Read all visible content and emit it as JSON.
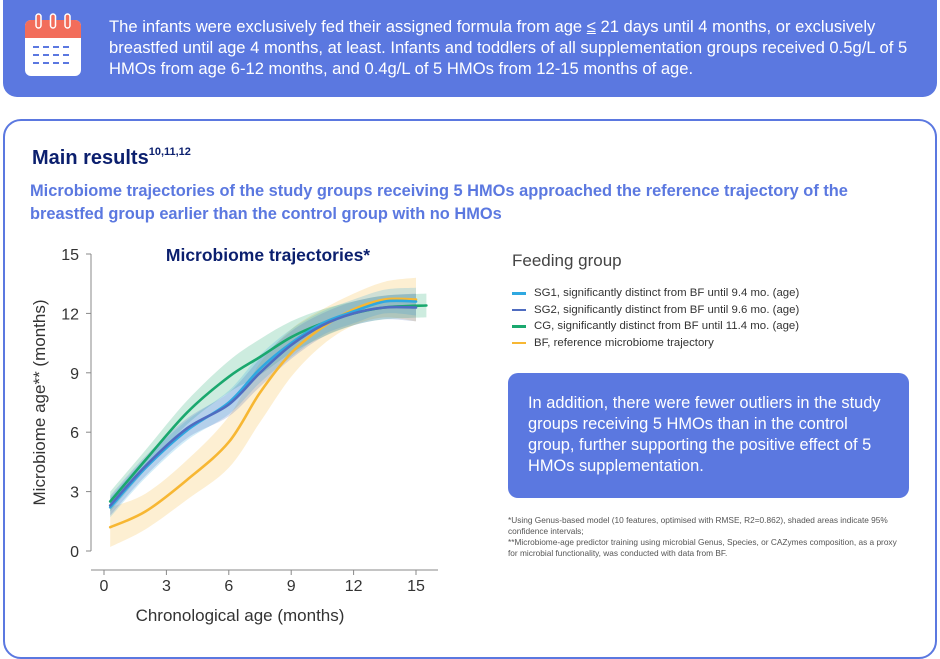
{
  "banner": {
    "text_before_le": "The infants were exclusively fed their assigned formula from age ",
    "le_symbol": "≤",
    "text_after_le": " 21 days until 4 months, or exclusively breastfed until age 4 months, at least. Infants and toddlers of all supplementation groups received 0.5g/L of 5 HMOs from age 6-12 months, and 0.4g/L of 5 HMOs from 12-15 months of age."
  },
  "main_title": "Main results",
  "main_title_refs": "10,11,12",
  "subtitle": "Microbiome trajectories of the study groups receiving 5 HMOs approached the reference trajectory of the breastfed group earlier than the control group with no HMOs",
  "legend": {
    "title": "Feeding group",
    "items": [
      {
        "label": "SG1, significantly distinct from BF until 9.4 mo. (age)",
        "color": "#2fa8e0"
      },
      {
        "label": "SG2, significantly distinct from BF until 9.6 mo. (age)",
        "color": "#4f6cc0"
      },
      {
        "label": "CG, significantly distinct from BF until 11.4 mo. (age)",
        "color": "#1aa86e"
      },
      {
        "label": "BF, reference microbiome trajectory",
        "color": "#f7b733"
      }
    ]
  },
  "callout": "In addition, there were fewer outliers in the study groups receiving 5 HMOs than in the control group, further supporting the positive effect of 5 HMOs supplementation.",
  "footnotes": [
    "*Using Genus-based model (10 features, optimised with RMSE, R2=0.862), shaded areas indicate 95% confidence intervals;",
    "**Microbiome-age predictor training using microbial Genus, Species, or CAZymes composition, as a proxy for microbial functionality, was conducted with data from BF."
  ],
  "chart_data": {
    "type": "line",
    "title": "Microbiome trajectories*",
    "xlabel": "Chronological age (months)",
    "ylabel": "Microbiome age** (months)",
    "xlim": [
      0,
      15.5
    ],
    "ylim": [
      0,
      15
    ],
    "xticks": [
      "0",
      "3",
      "6",
      "9",
      "12",
      "15"
    ],
    "yticks": [
      "0",
      "3",
      "6",
      "9",
      "12",
      "15"
    ],
    "grid": false,
    "series": [
      {
        "name": "BF",
        "color": "#f7b733",
        "x": [
          0.3,
          2,
          4,
          6,
          7.5,
          9,
          10.5,
          12,
          13.5,
          15
        ],
        "values": [
          1.2,
          2.0,
          3.6,
          5.5,
          8.0,
          10.0,
          11.3,
          12.2,
          12.7,
          12.7
        ],
        "ci": [
          1.0,
          0.9,
          1.0,
          1.3,
          1.5,
          1.2,
          0.9,
          0.8,
          0.9,
          1.1
        ]
      },
      {
        "name": "CG",
        "color": "#1aa86e",
        "x": [
          0.3,
          2,
          4,
          6,
          7.5,
          9,
          10.5,
          12,
          13.5,
          15.5
        ],
        "values": [
          2.5,
          4.6,
          7.0,
          8.8,
          9.8,
          10.8,
          11.5,
          12.0,
          12.3,
          12.4
        ],
        "ci": [
          0.5,
          0.5,
          0.6,
          0.8,
          0.9,
          0.8,
          0.7,
          0.6,
          0.6,
          0.6
        ]
      },
      {
        "name": "SG1",
        "color": "#2fa8e0",
        "x": [
          0.3,
          2,
          4,
          6,
          7.5,
          9,
          10.5,
          12,
          13.5,
          15
        ],
        "values": [
          2.2,
          4.2,
          6.1,
          7.5,
          9.2,
          10.5,
          11.5,
          12.1,
          12.6,
          12.6
        ],
        "ci": [
          0.5,
          0.5,
          0.5,
          0.6,
          0.7,
          0.7,
          0.6,
          0.6,
          0.6,
          0.7
        ]
      },
      {
        "name": "SG2",
        "color": "#4f6cc0",
        "x": [
          0.3,
          2,
          4,
          6,
          7.5,
          9,
          10.5,
          12,
          13.5,
          15
        ],
        "values": [
          2.3,
          4.3,
          6.2,
          7.4,
          9.0,
          10.4,
          11.4,
          12.0,
          12.3,
          12.3
        ],
        "ci": [
          0.5,
          0.5,
          0.5,
          0.6,
          0.7,
          0.7,
          0.6,
          0.6,
          0.6,
          0.7
        ]
      }
    ]
  }
}
